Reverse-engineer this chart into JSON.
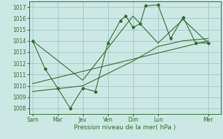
{
  "background_color": "#cce8e4",
  "grid_color": "#99bbbb",
  "line_color": "#2d6b2d",
  "title": "Pression niveau de la mer( hPa )",
  "ylim": [
    1007.5,
    1017.5
  ],
  "yticks": [
    1008,
    1009,
    1010,
    1011,
    1012,
    1013,
    1014,
    1015,
    1016,
    1017
  ],
  "xtick_labels": [
    "Sam",
    "Mar",
    "Jeu",
    "Ven",
    "Dim",
    "Lun",
    "Mer"
  ],
  "xtick_positions": [
    0,
    14,
    28,
    42,
    56,
    70,
    98
  ],
  "xlim": [
    -2,
    105
  ],
  "main_line_x": [
    0,
    7,
    14,
    21,
    28,
    35,
    42,
    49,
    52,
    56,
    60,
    63,
    70,
    77,
    84,
    91,
    98
  ],
  "main_line_y": [
    1014,
    1011.5,
    1009.8,
    1008,
    1009.8,
    1009.5,
    1013.8,
    1015.8,
    1016.2,
    1015.2,
    1015.5,
    1017.1,
    1017.2,
    1014.2,
    1016.1,
    1013.8,
    1013.8
  ],
  "upper_line_x": [
    0,
    28,
    56,
    70,
    84,
    98
  ],
  "upper_line_y": [
    1014.0,
    1010.5,
    1016.2,
    1013.8,
    1015.9,
    1013.8
  ],
  "lower_line_x": [
    0,
    28,
    56,
    70,
    84,
    98
  ],
  "lower_line_y": [
    1009.5,
    1010.0,
    1012.2,
    1013.5,
    1014.0,
    1014.2
  ],
  "trend_line_x": [
    0,
    98
  ],
  "trend_line_y": [
    1010.2,
    1014.0
  ]
}
